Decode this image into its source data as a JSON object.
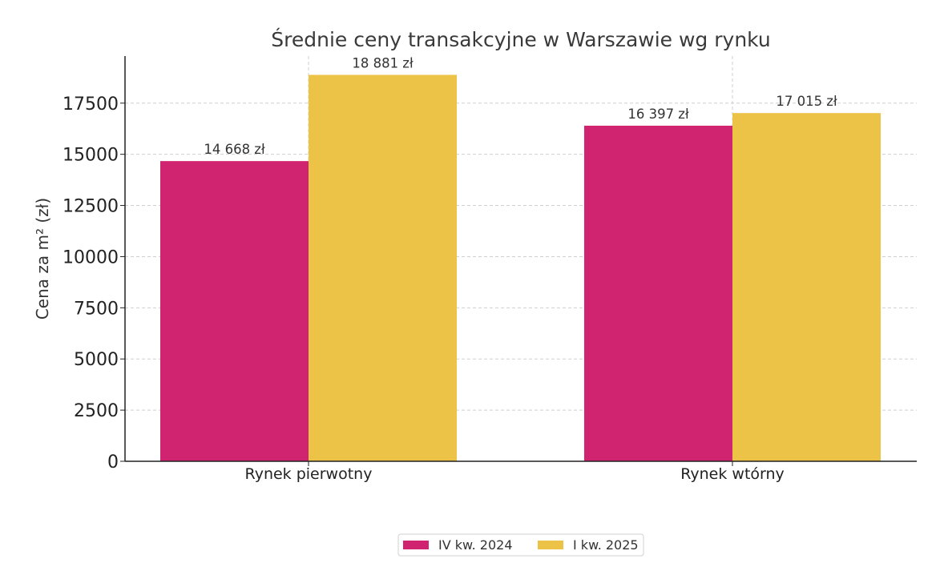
{
  "chart_data": {
    "type": "bar",
    "title": "Średnie ceny transakcyjne w Warszawie wg rynku",
    "xlabel": "",
    "ylabel": "Cena za m² (zł)",
    "categories": [
      "Rynek pierwotny",
      "Rynek wtórny"
    ],
    "series": [
      {
        "name": "IV kw. 2024",
        "color": "#d12470",
        "values": [
          14668,
          16397
        ],
        "labels": [
          "14 668 zł",
          "16 397 zł"
        ]
      },
      {
        "name": "I kw. 2025",
        "color": "#ecc247",
        "values": [
          18881,
          17015
        ],
        "labels": [
          "18 881 zł",
          "17 015 zł"
        ]
      }
    ],
    "ylim": [
      0,
      19800
    ],
    "yticks": [
      0,
      2500,
      5000,
      7500,
      10000,
      12500,
      15000,
      17500
    ],
    "ytick_labels": [
      "0",
      "2500",
      "5000",
      "7500",
      "10000",
      "12500",
      "15000",
      "17500"
    ],
    "grid": true,
    "legend_position": "bottom-center"
  }
}
